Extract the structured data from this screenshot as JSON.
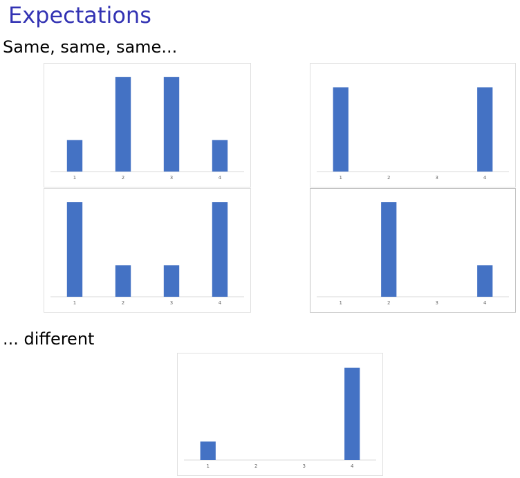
{
  "slide": {
    "title": "Expectations",
    "subtitle": "Same, same, same...",
    "different_label": "... different"
  },
  "colors": {
    "bar": "#4472C4",
    "axis": "#d9d9d9",
    "title": "#3333B3"
  },
  "chart_data": [
    {
      "type": "bar",
      "categories": [
        "1",
        "2",
        "3",
        "4"
      ],
      "values": [
        1,
        3,
        3,
        1
      ],
      "ylim": [
        0,
        3.2
      ]
    },
    {
      "type": "bar",
      "categories": [
        "1",
        "2",
        "3",
        "4"
      ],
      "values": [
        3,
        0,
        0,
        3
      ],
      "ylim": [
        0,
        3.6
      ]
    },
    {
      "type": "bar",
      "categories": [
        "1",
        "2",
        "3",
        "4"
      ],
      "values": [
        3,
        1,
        1,
        3
      ],
      "ylim": [
        0,
        3.2
      ]
    },
    {
      "type": "bar",
      "categories": [
        "1",
        "2",
        "3",
        "4"
      ],
      "values": [
        0,
        3,
        0,
        1
      ],
      "ylim": [
        0,
        3.2
      ]
    },
    {
      "type": "bar",
      "categories": [
        "1",
        "2",
        "3",
        "4"
      ],
      "values": [
        1,
        0,
        0,
        5
      ],
      "ylim": [
        0,
        5.4
      ]
    }
  ]
}
